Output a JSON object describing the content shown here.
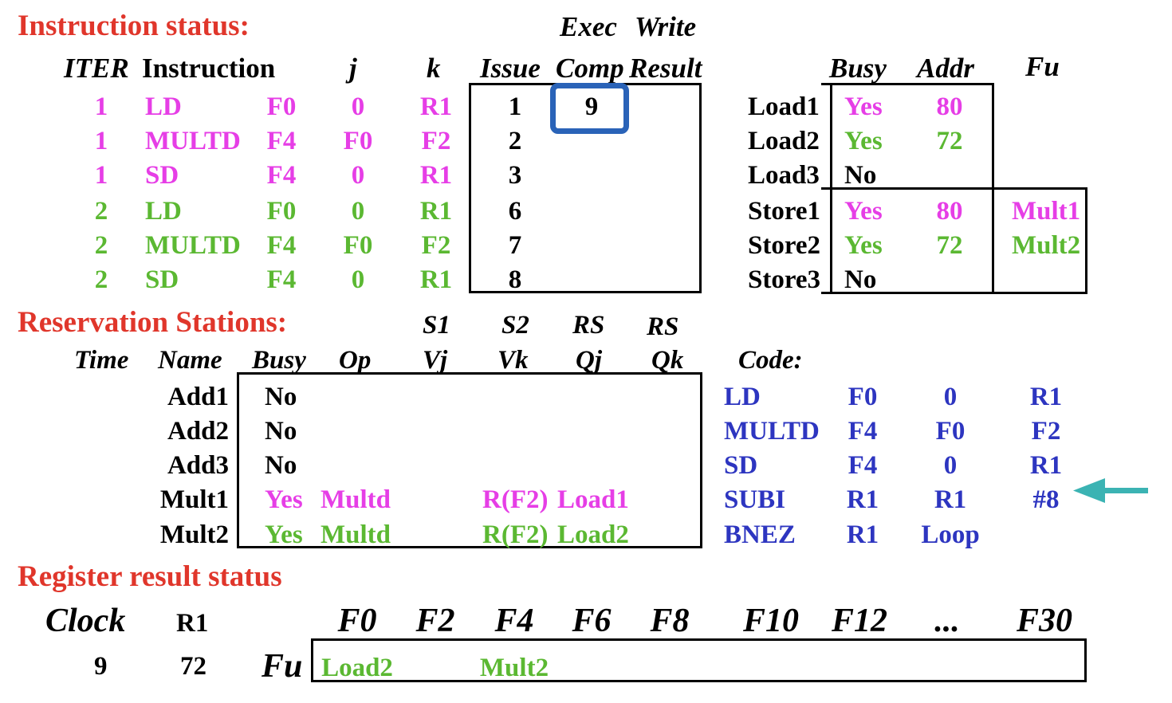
{
  "sections": {
    "instruction_status": "Instruction status:",
    "reservation_stations": "Reservation Stations:",
    "register_result_status": "Register result status"
  },
  "instr_headers": {
    "exec": "Exec",
    "write": "Write",
    "iter": "ITER",
    "instruction": "Instruction",
    "j": "j",
    "k": "k",
    "issue": "Issue",
    "comp": "Comp",
    "result": "Result"
  },
  "instructions": [
    {
      "iter": "1",
      "op": "LD",
      "dst": "F0",
      "j": "0",
      "k": "R1",
      "issue": "1",
      "comp": "9",
      "color": "#e63ee6"
    },
    {
      "iter": "1",
      "op": "MULTD",
      "dst": "F4",
      "j": "F0",
      "k": "F2",
      "issue": "2",
      "comp": "",
      "color": "#e63ee6"
    },
    {
      "iter": "1",
      "op": "SD",
      "dst": "F4",
      "j": "0",
      "k": "R1",
      "issue": "3",
      "comp": "",
      "color": "#e63ee6"
    },
    {
      "iter": "2",
      "op": "LD",
      "dst": "F0",
      "j": "0",
      "k": "R1",
      "issue": "6",
      "comp": "",
      "color": "#5bb832"
    },
    {
      "iter": "2",
      "op": "MULTD",
      "dst": "F4",
      "j": "F0",
      "k": "F2",
      "issue": "7",
      "comp": "",
      "color": "#5bb832"
    },
    {
      "iter": "2",
      "op": "SD",
      "dst": "F4",
      "j": "0",
      "k": "R1",
      "issue": "8",
      "comp": "",
      "color": "#5bb832"
    }
  ],
  "buffer_headers": {
    "busy": "Busy",
    "addr": "Addr",
    "fu": "Fu"
  },
  "buffers": [
    {
      "name": "Load1",
      "busy": "Yes",
      "addr": "80",
      "fu": ""
    },
    {
      "name": "Load2",
      "busy": "Yes",
      "addr": "72",
      "fu": ""
    },
    {
      "name": "Load3",
      "busy": "No",
      "addr": "",
      "fu": ""
    },
    {
      "name": "Store1",
      "busy": "Yes",
      "addr": "80",
      "fu": "Mult1"
    },
    {
      "name": "Store2",
      "busy": "Yes",
      "addr": "72",
      "fu": "Mult2"
    },
    {
      "name": "Store3",
      "busy": "No",
      "addr": "",
      "fu": ""
    }
  ],
  "rs_headers": {
    "s1": "S1",
    "s2": "S2",
    "rs1": "RS",
    "rs2": "RS",
    "time": "Time",
    "name": "Name",
    "busy": "Busy",
    "op": "Op",
    "vj": "Vj",
    "vk": "Vk",
    "qj": "Qj",
    "qk": "Qk"
  },
  "stations": [
    {
      "name": "Add1",
      "busy": "No",
      "op": "",
      "vk": "",
      "qj": ""
    },
    {
      "name": "Add2",
      "busy": "No",
      "op": "",
      "vk": "",
      "qj": ""
    },
    {
      "name": "Add3",
      "busy": "No",
      "op": "",
      "vk": "",
      "qj": ""
    },
    {
      "name": "Mult1",
      "busy": "Yes",
      "op": "Multd",
      "vk": "R(F2)",
      "qj": "Load1"
    },
    {
      "name": "Mult2",
      "busy": "Yes",
      "op": "Multd",
      "vk": "R(F2)",
      "qj": "Load2"
    }
  ],
  "code": {
    "label": "Code:",
    "lines": [
      [
        "LD",
        "F0",
        "0",
        "R1"
      ],
      [
        "MULTD",
        "F4",
        "F0",
        "F2"
      ],
      [
        "SD",
        "F4",
        "0",
        "R1"
      ],
      [
        "SUBI",
        "R1",
        "R1",
        "#8"
      ],
      [
        "BNEZ",
        "R1",
        "Loop",
        ""
      ]
    ]
  },
  "register_status": {
    "clock_label": "Clock",
    "r1_label": "R1",
    "clock_value": "9",
    "r1_value": "72",
    "fu_label": "Fu",
    "registers": [
      "F0",
      "F2",
      "F4",
      "F6",
      "F8",
      "F10",
      "F12",
      "...",
      "F30"
    ],
    "fu_values": [
      "Load2",
      "",
      "Mult2",
      "",
      "",
      "",
      "",
      "",
      ""
    ]
  },
  "colors": {
    "section": "#e0362b",
    "iteration1": "#e63ee6",
    "iteration2": "#5bb832",
    "code": "#2d35c0",
    "highlight": "#2a63b8",
    "arrow": "#3bb3b3"
  }
}
